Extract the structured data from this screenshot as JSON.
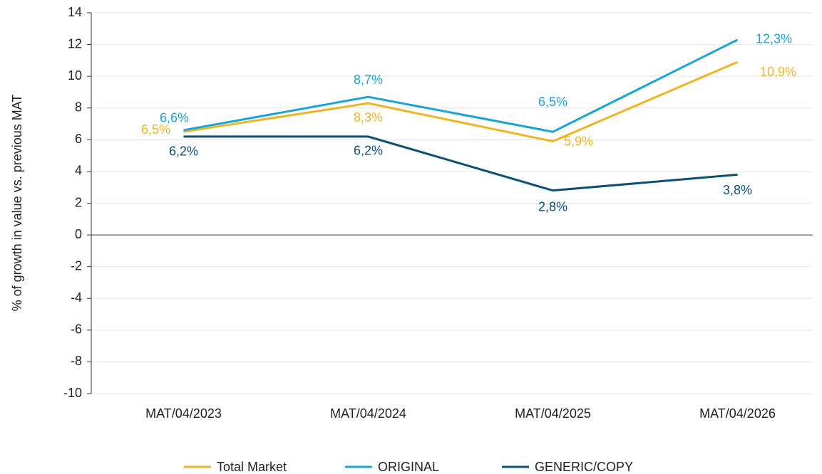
{
  "chart_data": {
    "type": "line",
    "y_axis_label": "% of growth in value vs. previous MAT",
    "categories": [
      "MAT/04/2023",
      "MAT/04/2024",
      "MAT/04/2025",
      "MAT/04/2026"
    ],
    "series": [
      {
        "name": "Total Market",
        "color": "#f0b323",
        "values": [
          6.5,
          8.3,
          5.9,
          10.9
        ],
        "value_labels": [
          "6,5%",
          "8,3%",
          "5,9%",
          "10,9%"
        ]
      },
      {
        "name": "ORIGINAL",
        "color": "#1aa3d9",
        "values": [
          6.6,
          8.7,
          6.5,
          12.3
        ],
        "value_labels": [
          "6,6%",
          "8,7%",
          "6,5%",
          "12,3%"
        ]
      },
      {
        "name": "GENERIC/COPY",
        "color": "#0b4f77",
        "values": [
          6.2,
          6.2,
          2.8,
          3.8
        ],
        "value_labels": [
          "6,2%",
          "6,2%",
          "2,8%",
          "3,8%"
        ]
      }
    ],
    "ylim": [
      -10,
      14
    ],
    "yticks": [
      -10,
      -8,
      -6,
      -4,
      -2,
      0,
      2,
      4,
      6,
      8,
      10,
      12,
      14
    ],
    "grid": true,
    "legend": "bottom"
  }
}
